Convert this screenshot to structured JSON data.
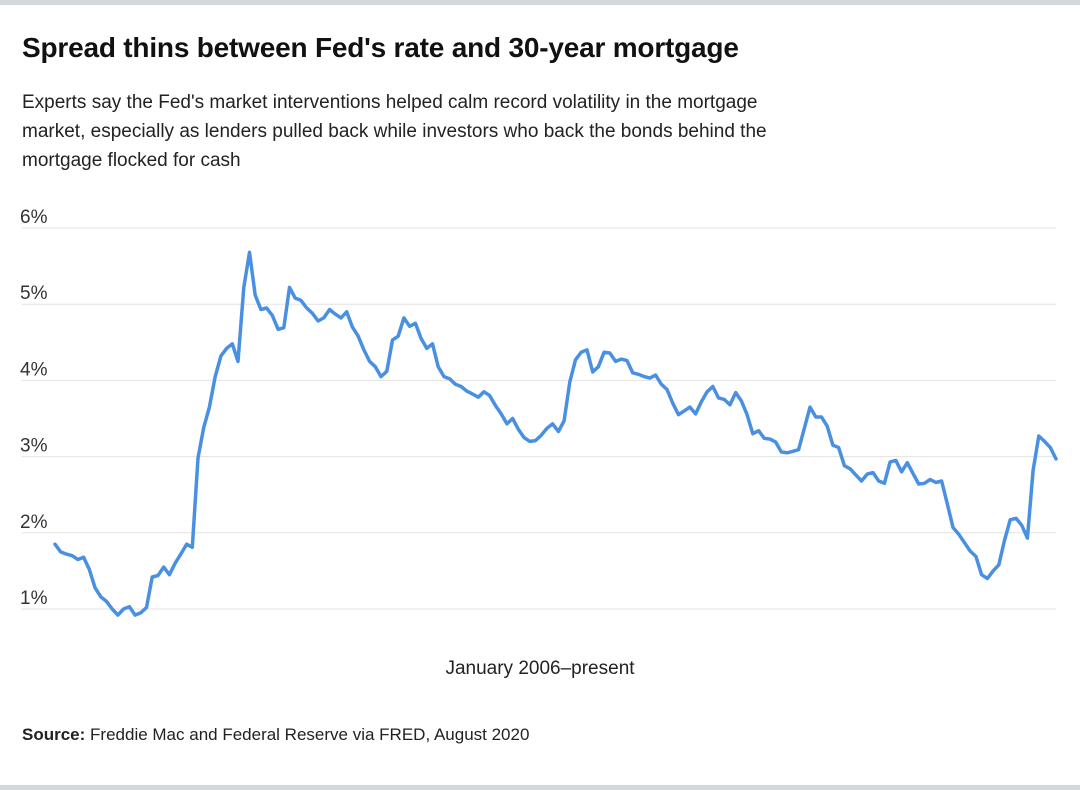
{
  "header": {
    "title": "Spread thins between Fed's rate and 30-year mortgage",
    "subtitle": "Experts say the Fed's market interventions helped calm record volatility in the mortgage market, especially as lenders pulled back while investors who back the bonds behind the mortgage flocked for cash"
  },
  "source": {
    "label": "Source:",
    "text": "Freddie Mac and Federal Reserve via FRED, August 2020"
  },
  "chart_data": {
    "type": "line",
    "xlabel": "January 2006–present",
    "ylabel": "",
    "ylim": [
      1,
      6
    ],
    "yticks": [
      6,
      5,
      4,
      3,
      2,
      1
    ],
    "ytick_labels": [
      "6%",
      "5%",
      "4%",
      "3%",
      "2%",
      "1%"
    ],
    "grid": true,
    "line_color": "#4a90e2",
    "series": [
      {
        "values": [
          1.85,
          1.75,
          1.72,
          1.7,
          1.65,
          1.68,
          1.52,
          1.28,
          1.16,
          1.1,
          1.0,
          0.92,
          1.0,
          1.03,
          0.92,
          0.95,
          1.02,
          1.42,
          1.44,
          1.55,
          1.45,
          1.6,
          1.72,
          1.85,
          1.81,
          2.98,
          3.38,
          3.65,
          4.05,
          4.32,
          4.42,
          4.48,
          4.25,
          5.22,
          5.68,
          5.12,
          4.93,
          4.95,
          4.85,
          4.67,
          4.69,
          5.22,
          5.08,
          5.05,
          4.95,
          4.88,
          4.78,
          4.82,
          4.93,
          4.87,
          4.82,
          4.9,
          4.7,
          4.58,
          4.4,
          4.25,
          4.18,
          4.05,
          4.12,
          4.53,
          4.58,
          4.82,
          4.71,
          4.75,
          4.55,
          4.42,
          4.48,
          4.18,
          4.05,
          4.02,
          3.95,
          3.92,
          3.86,
          3.82,
          3.78,
          3.85,
          3.8,
          3.67,
          3.56,
          3.43,
          3.5,
          3.36,
          3.25,
          3.2,
          3.21,
          3.28,
          3.37,
          3.43,
          3.33,
          3.47,
          3.98,
          4.27,
          4.37,
          4.4,
          4.11,
          4.18,
          4.37,
          4.36,
          4.25,
          4.28,
          4.26,
          4.1,
          4.08,
          4.05,
          4.03,
          4.07,
          3.95,
          3.88,
          3.7,
          3.55,
          3.6,
          3.65,
          3.56,
          3.72,
          3.85,
          3.92,
          3.77,
          3.75,
          3.68,
          3.84,
          3.73,
          3.55,
          3.3,
          3.34,
          3.24,
          3.23,
          3.19,
          3.06,
          3.05,
          3.07,
          3.09,
          3.37,
          3.65,
          3.52,
          3.52,
          3.4,
          3.15,
          3.12,
          2.88,
          2.84,
          2.76,
          2.68,
          2.77,
          2.79,
          2.68,
          2.65,
          2.93,
          2.95,
          2.8,
          2.92,
          2.78,
          2.64,
          2.65,
          2.7,
          2.66,
          2.68,
          2.38,
          2.07,
          1.98,
          1.87,
          1.76,
          1.69,
          1.45,
          1.4,
          1.5,
          1.58,
          1.9,
          2.17,
          2.19,
          2.1,
          1.93,
          2.82,
          3.27,
          3.2,
          3.12,
          2.97
        ]
      }
    ]
  }
}
